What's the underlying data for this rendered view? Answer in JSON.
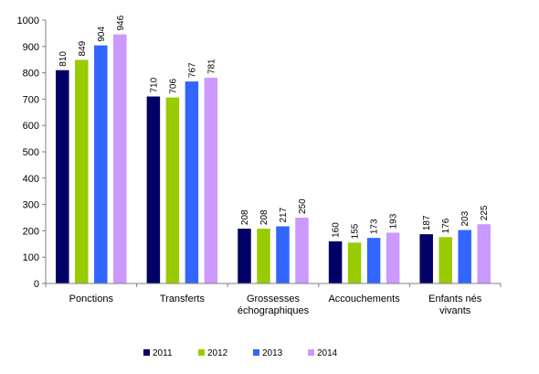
{
  "chart_data": {
    "type": "bar",
    "categories": [
      [
        "Ponctions"
      ],
      [
        "Transferts"
      ],
      [
        "Grossesses",
        "échographiques"
      ],
      [
        "Accouchements"
      ],
      [
        "Enfants nés",
        "vivants"
      ]
    ],
    "series": [
      {
        "name": "2011",
        "color": "#000066",
        "values": [
          810,
          710,
          208,
          160,
          187
        ]
      },
      {
        "name": "2012",
        "color": "#99cc00",
        "values": [
          849,
          706,
          208,
          155,
          176
        ]
      },
      {
        "name": "2013",
        "color": "#3366ff",
        "values": [
          904,
          767,
          217,
          173,
          203
        ]
      },
      {
        "name": "2014",
        "color": "#cc99ff",
        "values": [
          946,
          781,
          250,
          193,
          225
        ]
      }
    ],
    "title": "",
    "xlabel": "",
    "ylabel": "",
    "ylim": [
      0,
      1000
    ],
    "yticks": [
      "0",
      "100",
      "200",
      "300",
      "400",
      "500",
      "600",
      "700",
      "800",
      "900",
      "1000"
    ],
    "grid": false,
    "legend_position": "bottom",
    "data_labels": "vertical, above bars"
  }
}
